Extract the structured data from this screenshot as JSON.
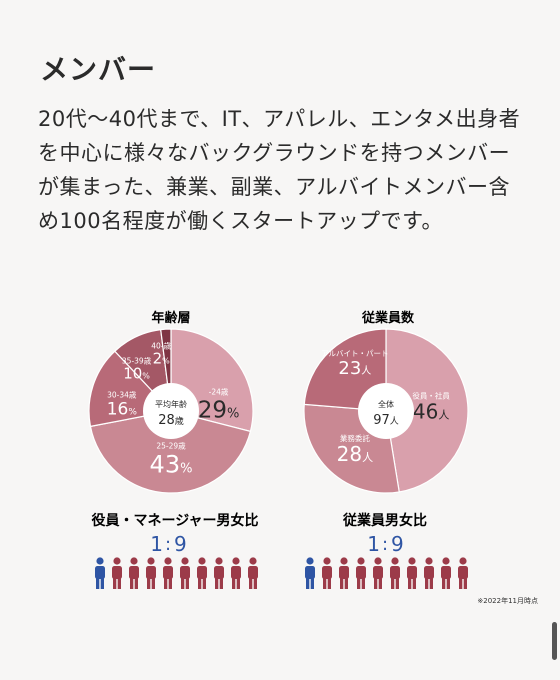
{
  "page": {
    "title": "メンバー",
    "paragraph": "20代〜40代まで、IT、アパレル、エンタメ出身者を中心に様々なバックグラウンドを持つメンバーが集まった、兼業、副業、アルバイトメンバー含め100名程度が働くスタートアップです。",
    "footnote": "※2022年11月時点"
  },
  "colors": {
    "pink_light": "#d9a0ac",
    "pink_mid": "#c98893",
    "rose": "#b86a78",
    "rose_dark": "#a45866",
    "burgundy": "#7f3544",
    "male_blue": "#2f55a4",
    "female_red": "#9c3b49",
    "ratio_blue": "#2f55a4"
  },
  "chart_data": [
    {
      "type": "pie",
      "title": "年齢層",
      "center_label": "平均年齢",
      "center_value": "28",
      "center_unit": "歳",
      "slices": [
        {
          "label": "-24歳",
          "value": 29,
          "unit": "%",
          "color": "#d9a0ac"
        },
        {
          "label": "25-29歳",
          "value": 43,
          "unit": "%",
          "color": "#c98893"
        },
        {
          "label": "30-34歳",
          "value": 16,
          "unit": "%",
          "color": "#b86a78"
        },
        {
          "label": "35-39歳",
          "value": 10,
          "unit": "%",
          "color": "#a45866"
        },
        {
          "label": "40-歳",
          "value": 2,
          "unit": "%",
          "color": "#7f3544"
        }
      ]
    },
    {
      "type": "pie",
      "title": "従業員数",
      "center_label": "全体",
      "center_value": "97",
      "center_unit": "人",
      "slices": [
        {
          "label": "役員・社員",
          "value": 46,
          "unit": "人",
          "color": "#d9a0ac"
        },
        {
          "label": "業務委託",
          "value": 28,
          "unit": "人",
          "color": "#c98893"
        },
        {
          "label": "アルバイト・パート",
          "value": 23,
          "unit": "人",
          "color": "#b86a78"
        }
      ]
    }
  ],
  "ratios": [
    {
      "title": "役員・マネージャー男女比",
      "left": "1",
      "sep": ":",
      "right": "9",
      "male": 1,
      "female": 9
    },
    {
      "title": "従業員男女比",
      "left": "1",
      "sep": ":",
      "right": "9",
      "male": 1,
      "female": 9
    }
  ]
}
